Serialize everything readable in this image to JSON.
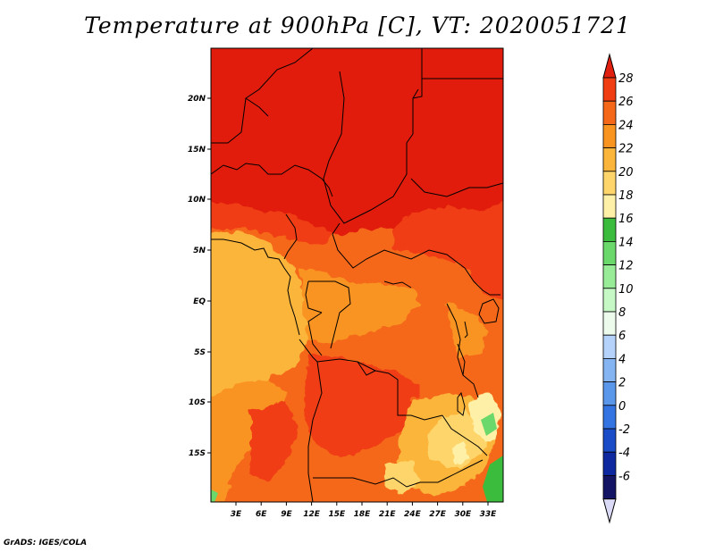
{
  "title": "Temperature at 900hPa [C], VT: 2020051721",
  "credit": "GrADS: IGES/COLA",
  "map": {
    "lon_range": [
      0,
      35
    ],
    "lat_range": [
      -20,
      24.5
    ],
    "lat_ticks": [
      "20N",
      "15N",
      "10N",
      "5N",
      "EQ",
      "5S",
      "10S",
      "15S"
    ],
    "lon_ticks": [
      "3E",
      "6E",
      "9E",
      "12E",
      "15E",
      "18E",
      "21E",
      "24E",
      "27E",
      "30E",
      "33E"
    ]
  },
  "colorbar": {
    "labels": [
      "28",
      "26",
      "24",
      "22",
      "20",
      "18",
      "16",
      "14",
      "12",
      "10",
      "8",
      "6",
      "4",
      "2",
      "0",
      "-2",
      "-4",
      "-6"
    ],
    "colors": [
      "#e11f0f",
      "#f03d12",
      "#f5681a",
      "#f99420",
      "#fbb53a",
      "#fed56a",
      "#fef0a6",
      "#3cbc3c",
      "#6ad86a",
      "#98ec98",
      "#c6f8c6",
      "#ecfbec",
      "#b4d2fa",
      "#84b4f2",
      "#5a96ea",
      "#3474e2",
      "#1a4cc8",
      "#0e28a0",
      "#141464",
      "#dadaf6"
    ]
  }
}
